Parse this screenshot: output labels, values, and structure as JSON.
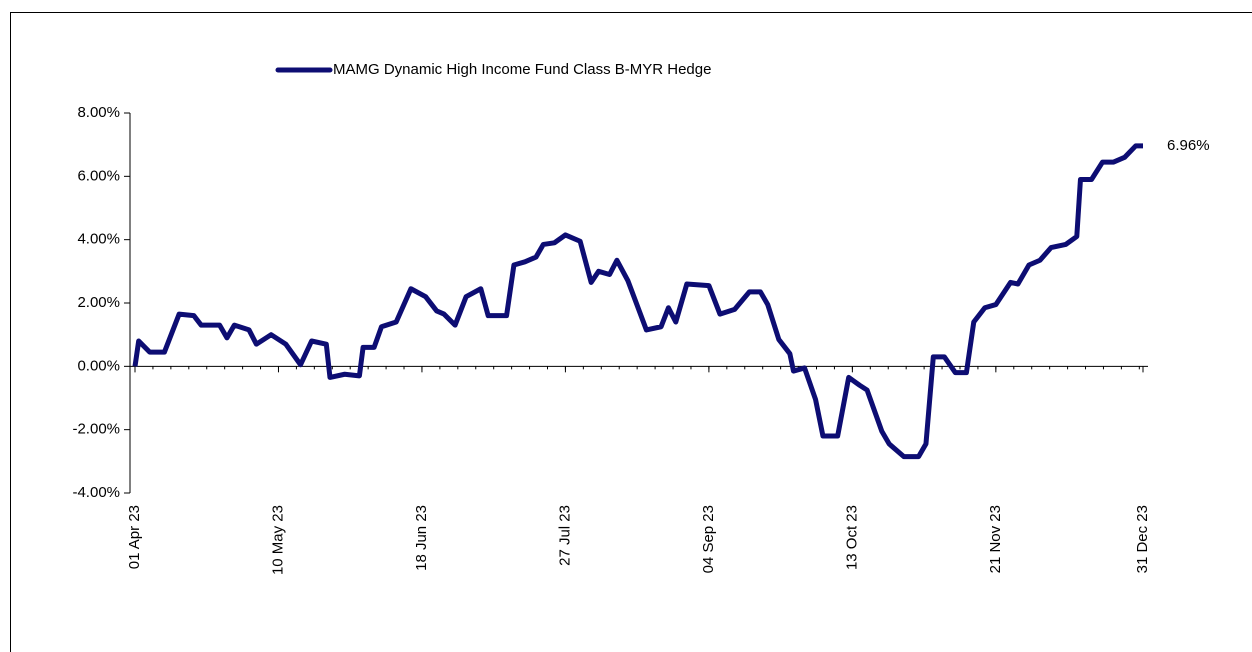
{
  "chart_data": {
    "type": "line",
    "x": [
      "2023-04-01",
      "2023-04-02",
      "2023-04-05",
      "2023-04-09",
      "2023-04-13",
      "2023-04-17",
      "2023-04-19",
      "2023-04-24",
      "2023-04-26",
      "2023-04-28",
      "2023-05-02",
      "2023-05-04",
      "2023-05-08",
      "2023-05-12",
      "2023-05-16",
      "2023-05-19",
      "2023-05-23",
      "2023-05-24",
      "2023-05-28",
      "2023-06-01",
      "2023-06-02",
      "2023-06-05",
      "2023-06-07",
      "2023-06-11",
      "2023-06-15",
      "2023-06-19",
      "2023-06-22",
      "2023-06-24",
      "2023-06-27",
      "2023-06-30",
      "2023-07-04",
      "2023-07-06",
      "2023-07-11",
      "2023-07-13",
      "2023-07-16",
      "2023-07-19",
      "2023-07-21",
      "2023-07-24",
      "2023-07-27",
      "2023-07-31",
      "2023-08-03",
      "2023-08-05",
      "2023-08-08",
      "2023-08-10",
      "2023-08-13",
      "2023-08-18",
      "2023-08-22",
      "2023-08-24",
      "2023-08-26",
      "2023-08-29",
      "2023-09-04",
      "2023-09-07",
      "2023-09-11",
      "2023-09-15",
      "2023-09-18",
      "2023-09-20",
      "2023-09-23",
      "2023-09-26",
      "2023-09-27",
      "2023-09-30",
      "2023-10-03",
      "2023-10-05",
      "2023-10-09",
      "2023-10-12",
      "2023-10-15",
      "2023-10-17",
      "2023-10-21",
      "2023-10-23",
      "2023-10-27",
      "2023-10-31",
      "2023-11-02",
      "2023-11-04",
      "2023-11-07",
      "2023-11-10",
      "2023-11-13",
      "2023-11-15",
      "2023-11-18",
      "2023-11-21",
      "2023-11-25",
      "2023-11-27",
      "2023-11-30",
      "2023-12-03",
      "2023-12-06",
      "2023-12-10",
      "2023-12-13",
      "2023-12-14",
      "2023-12-17",
      "2023-12-20",
      "2023-12-23",
      "2023-12-26",
      "2023-12-29",
      "2023-12-31"
    ],
    "series": [
      {
        "name": "MAMG Dynamic High Income Fund Class B-MYR Hedge",
        "color": "#0d0d73",
        "values": [
          0,
          0.8,
          0.45,
          0.45,
          1.65,
          1.6,
          1.3,
          1.3,
          0.9,
          1.3,
          1.15,
          0.7,
          1.0,
          0.7,
          0.05,
          0.8,
          0.7,
          -0.35,
          -0.25,
          -0.3,
          0.6,
          0.6,
          1.25,
          1.4,
          2.45,
          2.2,
          1.75,
          1.65,
          1.3,
          2.2,
          2.45,
          1.6,
          1.6,
          3.2,
          3.3,
          3.45,
          3.85,
          3.9,
          4.15,
          3.95,
          2.65,
          3.0,
          2.9,
          3.35,
          2.7,
          1.15,
          1.25,
          1.85,
          1.4,
          2.6,
          2.55,
          1.65,
          1.8,
          2.35,
          2.35,
          1.95,
          0.85,
          0.4,
          -0.15,
          -0.05,
          -1.05,
          -2.2,
          -2.2,
          -0.35,
          -0.6,
          -0.75,
          -2.05,
          -2.45,
          -2.85,
          -2.85,
          -2.45,
          0.3,
          0.3,
          -0.2,
          -0.2,
          1.4,
          1.85,
          1.95,
          2.65,
          2.6,
          3.2,
          3.35,
          3.75,
          3.85,
          4.1,
          5.9,
          5.9,
          6.45,
          6.45,
          6.6,
          6.96,
          6.96
        ]
      }
    ],
    "annotations": [
      {
        "text": "6.96%",
        "x": "2023-12-31",
        "y": 6.96
      }
    ],
    "xlim": [
      "2023-04-01",
      "2023-12-31"
    ],
    "xticks": [
      {
        "value": "2023-04-01",
        "label": "01 Apr 23"
      },
      {
        "value": "2023-05-10",
        "label": "10 May 23"
      },
      {
        "value": "2023-06-18",
        "label": "18 Jun 23"
      },
      {
        "value": "2023-07-27",
        "label": "27 Jul 23"
      },
      {
        "value": "2023-09-04",
        "label": "04 Sep 23"
      },
      {
        "value": "2023-10-13",
        "label": "13 Oct 23"
      },
      {
        "value": "2023-11-21",
        "label": "21 Nov 23"
      },
      {
        "value": "2023-12-31",
        "label": "31 Dec 23"
      }
    ],
    "ylim": [
      -4,
      8
    ],
    "yticks": [
      {
        "value": -4,
        "label": "-4.00%"
      },
      {
        "value": -2,
        "label": "-2.00%"
      },
      {
        "value": 0,
        "label": "0.00%"
      },
      {
        "value": 2,
        "label": "2.00%"
      },
      {
        "value": 4,
        "label": "4.00%"
      },
      {
        "value": 6,
        "label": "6.00%"
      },
      {
        "value": 8,
        "label": "8.00%"
      }
    ],
    "legend": "top"
  }
}
